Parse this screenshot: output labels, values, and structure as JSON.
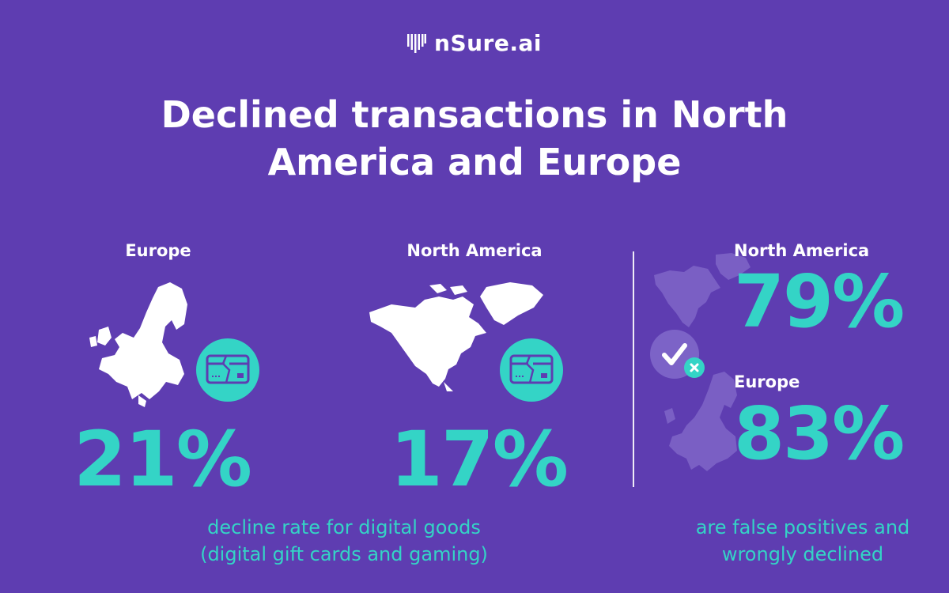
{
  "logo": {
    "text": "nSure.ai",
    "icon": "barcode-logo-icon"
  },
  "title_line1": "Declined transactions in North",
  "title_line2": "America and Europe",
  "left_block": {
    "europe": {
      "label": "Europe",
      "percent": "21%",
      "icon": "declined-card-icon"
    },
    "north_america": {
      "label": "North America",
      "percent": "17%",
      "icon": "declined-card-icon"
    },
    "caption_line1": "decline rate for digital goods",
    "caption_line2": "(digital gift cards and gaming)"
  },
  "right_block": {
    "north_america": {
      "label": "North America",
      "percent": "79%"
    },
    "europe": {
      "label": "Europe",
      "percent": "83%"
    },
    "caption_line1": "are false positives and",
    "caption_line2": "wrongly declined",
    "icon": "check-with-x-icon"
  },
  "colors": {
    "background": "#5e3db1",
    "accent": "#34d4c6",
    "text": "#ffffff"
  }
}
